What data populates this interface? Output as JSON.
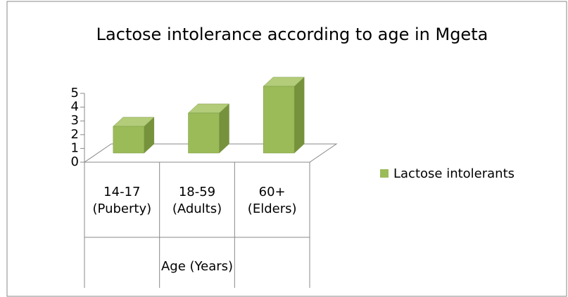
{
  "chart_data": {
    "type": "bar3d",
    "title": "Lactose intolerance according to age in Mgeta",
    "categories": [
      "14-17\n(Puberty)",
      "18-59\n(Adults)",
      "60+\n(Elders)"
    ],
    "x_label": "Age (Years)",
    "series": [
      {
        "name": "Lactose intolerants",
        "color": "#9bbb59",
        "values": [
          2,
          3,
          5
        ]
      }
    ],
    "ylim": [
      0,
      5
    ],
    "yticks": [
      0,
      1,
      2,
      3,
      4,
      5
    ],
    "legend": "right"
  }
}
